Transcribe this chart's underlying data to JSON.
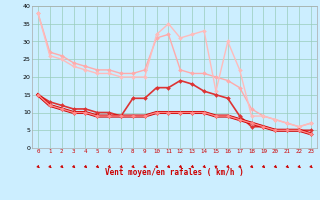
{
  "background_color": "#cceeff",
  "grid_color": "#99ccbb",
  "xlabel": "Vent moyen/en rafales ( km/h )",
  "xlim": [
    -0.5,
    23.5
  ],
  "ylim": [
    0,
    40
  ],
  "yticks": [
    0,
    5,
    10,
    15,
    20,
    25,
    30,
    35,
    40
  ],
  "xticks": [
    0,
    1,
    2,
    3,
    4,
    5,
    6,
    7,
    8,
    9,
    10,
    11,
    12,
    13,
    14,
    15,
    16,
    17,
    18,
    19,
    20,
    21,
    22,
    23
  ],
  "series": [
    {
      "x": [
        0,
        1,
        2,
        3,
        4,
        5,
        6,
        7,
        8,
        9,
        10,
        11,
        12,
        13,
        14,
        15,
        16,
        17,
        18,
        19,
        20,
        21,
        22,
        23
      ],
      "y": [
        38,
        27,
        26,
        24,
        23,
        22,
        22,
        21,
        21,
        22,
        31,
        32,
        22,
        21,
        21,
        20,
        19,
        17,
        11,
        9,
        8,
        7,
        6,
        7
      ],
      "color": "#ffaaaa",
      "lw": 1.0,
      "marker": "D",
      "ms": 2.0
    },
    {
      "x": [
        0,
        1,
        2,
        3,
        4,
        5,
        6,
        7,
        8,
        9,
        10,
        11,
        12,
        13,
        14,
        15,
        16,
        17,
        18,
        19,
        20,
        21,
        22,
        23
      ],
      "y": [
        38,
        26,
        25,
        23,
        22,
        21,
        21,
        20,
        20,
        20,
        32,
        35,
        31,
        32,
        33,
        16,
        30,
        22,
        9,
        9,
        8,
        7,
        6,
        7
      ],
      "color": "#ffbbbb",
      "lw": 1.0,
      "marker": "D",
      "ms": 2.0
    },
    {
      "x": [
        0,
        1,
        2,
        3,
        4,
        5,
        6,
        7,
        8,
        9,
        10,
        11,
        12,
        13,
        14,
        15,
        16,
        17,
        18,
        19,
        20,
        21,
        22,
        23
      ],
      "y": [
        15,
        13,
        12,
        11,
        11,
        10,
        10,
        9,
        14,
        14,
        17,
        17,
        19,
        18,
        16,
        15,
        14,
        9,
        6,
        6,
        5,
        5,
        5,
        5
      ],
      "color": "#dd3333",
      "lw": 1.2,
      "marker": "D",
      "ms": 2.0
    },
    {
      "x": [
        0,
        1,
        2,
        3,
        4,
        5,
        6,
        7,
        8,
        9,
        10,
        11,
        12,
        13,
        14,
        15,
        16,
        17,
        18,
        19,
        20,
        21,
        22,
        23
      ],
      "y": [
        15,
        12,
        11,
        10,
        10,
        9,
        9,
        9,
        9,
        9,
        10,
        10,
        10,
        10,
        10,
        9,
        9,
        8,
        7,
        6,
        5,
        5,
        5,
        4
      ],
      "color": "#cc0000",
      "lw": 2.2,
      "marker": "D",
      "ms": 2.0
    },
    {
      "x": [
        0,
        1,
        2,
        3,
        4,
        5,
        6,
        7,
        8,
        9,
        10,
        11,
        12,
        13,
        14,
        15,
        16,
        17,
        18,
        19,
        20,
        21,
        22,
        23
      ],
      "y": [
        15,
        12,
        11,
        10,
        10,
        9,
        9,
        9,
        9,
        9,
        10,
        10,
        10,
        10,
        10,
        9,
        9,
        8,
        7,
        6,
        5,
        5,
        5,
        4
      ],
      "color": "#ff8888",
      "lw": 1.0,
      "marker": "D",
      "ms": 2.0
    }
  ],
  "arrow_angles_deg": [
    45,
    45,
    45,
    45,
    45,
    45,
    45,
    45,
    45,
    45,
    45,
    45,
    45,
    45,
    45,
    0,
    45,
    45,
    45,
    45,
    45,
    45,
    45,
    45
  ]
}
